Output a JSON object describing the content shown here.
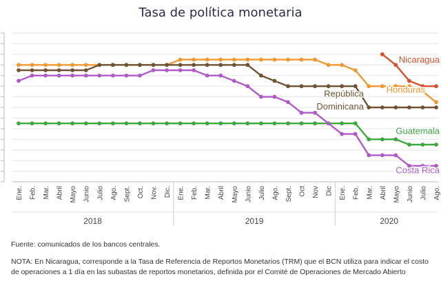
{
  "chart_data": {
    "type": "line",
    "title": "Tasa de política monetaria",
    "xlabel": "",
    "ylabel": "",
    "ylim": [
      0,
      14
    ],
    "grid": true,
    "x": [
      "Ene.",
      "Feb.",
      "Mar.",
      "Abril",
      "Mayo",
      "Junio",
      "Julio",
      "Ago.",
      "Sept.",
      "Oct.",
      "Nov.",
      "Dic.",
      "Ene.",
      "Feb.",
      "Mar.",
      "Abril",
      "Mayo",
      "Junio",
      "Julio",
      "Ago.",
      "Sept.",
      "Oct",
      "Nov",
      "Dic",
      "Ene.",
      "Feb.",
      "Mar.",
      "Abril",
      "Mayo",
      "Junio",
      "Julio",
      "Ago."
    ],
    "years": [
      {
        "label": "2018",
        "start": 0,
        "end": 11
      },
      {
        "label": "2019",
        "start": 12,
        "end": 23
      },
      {
        "label": "2020",
        "start": 24,
        "end": 31
      }
    ],
    "series": [
      {
        "name": "Nicaragua",
        "color": "#d8502a",
        "values": [
          null,
          null,
          null,
          null,
          null,
          null,
          null,
          null,
          null,
          null,
          null,
          null,
          null,
          null,
          null,
          null,
          null,
          null,
          null,
          null,
          null,
          null,
          null,
          null,
          null,
          null,
          null,
          12,
          11,
          9.5,
          9,
          9
        ]
      },
      {
        "name": "Honduras",
        "color": "#f0972f",
        "values": [
          11,
          11,
          11,
          11,
          11,
          11,
          11,
          11,
          11,
          11,
          11,
          11,
          11.5,
          11.5,
          11.5,
          11.5,
          11.5,
          11.5,
          11.5,
          11.5,
          11.5,
          11.5,
          11.5,
          11,
          11,
          10.5,
          9,
          9,
          9,
          9,
          8.5,
          7.5
        ]
      },
      {
        "name": "República Dominicana",
        "color": "#6e5232",
        "values": [
          10.5,
          10.5,
          10.5,
          10.5,
          10.5,
          10.5,
          11,
          11,
          11,
          11,
          11,
          11,
          11,
          11,
          11,
          11,
          11,
          11,
          10,
          9.5,
          9,
          9,
          9,
          9,
          9,
          9,
          7,
          7,
          7,
          7,
          7,
          7
        ]
      },
      {
        "name": "Guatemala",
        "color": "#3aa83a",
        "values": [
          5.5,
          5.5,
          5.5,
          5.5,
          5.5,
          5.5,
          5.5,
          5.5,
          5.5,
          5.5,
          5.5,
          5.5,
          5.5,
          5.5,
          5.5,
          5.5,
          5.5,
          5.5,
          5.5,
          5.5,
          5.5,
          5.5,
          5.5,
          5.5,
          5.5,
          5.5,
          4,
          4,
          4,
          3.5,
          3.5,
          3.5
        ]
      },
      {
        "name": "Costa Rica",
        "color": "#b05ac8",
        "values": [
          9.5,
          10,
          10,
          10,
          10,
          10,
          10,
          10,
          10,
          10,
          10.5,
          10.5,
          10.5,
          10.5,
          10,
          10,
          9.5,
          9,
          8,
          8,
          7.5,
          6.5,
          6.5,
          5.5,
          4.5,
          4.5,
          2.5,
          2.5,
          2.5,
          1.5,
          1.5,
          1.5
        ]
      }
    ],
    "labels": [
      {
        "text": "Nicaragua",
        "color": "#d8502a"
      },
      {
        "text": "Honduras",
        "color": "#f0972f"
      },
      {
        "text": "República",
        "color": "#6e5232"
      },
      {
        "text": "Dominicana",
        "color": "#6e5232"
      },
      {
        "text": "Guatemala",
        "color": "#3aa83a"
      },
      {
        "text": "Costa Rica",
        "color": "#b05ac8"
      }
    ]
  },
  "source": "Fuente: comunicados de los bancos centrales.",
  "note": "NOTA: En Nicaragua, corresponde a la Tasa de Referencia de Reportos Monetarios (TRM) que el BCN utiliza para indicar el costo de operaciones a 1 día en las subastas de reportos monetarios, definida por el Comité de Operaciones de Mercado Abierto"
}
